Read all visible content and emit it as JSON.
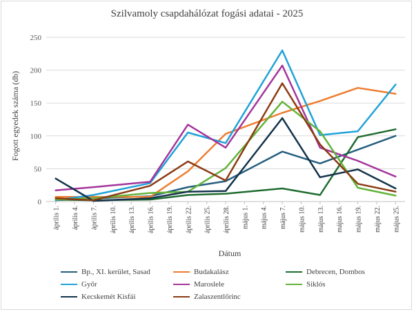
{
  "chart_data": {
    "type": "line",
    "title": "Szilvamoly csapdahálózat fogási adatai - 2025",
    "xlabel": "Dátum",
    "ylabel": "Fogott egyedek száma (db)",
    "ylim": [
      0,
      250
    ],
    "yticks": [
      0,
      50,
      100,
      150,
      200,
      250
    ],
    "grid": true,
    "legend_position": "bottom",
    "categories": [
      "április 1.",
      "április 4.",
      "április 7.",
      "április 10.",
      "április 13.",
      "április 16.",
      "április 19.",
      "április 22.",
      "április 25.",
      "április 28.",
      "május 1.",
      "május 4.",
      "május 7.",
      "május 10.",
      "május 13.",
      "május 16.",
      "május 19.",
      "május 22.",
      "május 25."
    ],
    "series": [
      {
        "name": "Bp., XI. kerület, Sasad",
        "color": "#255e7e",
        "points": [
          [
            0,
            2
          ],
          [
            2,
            5
          ],
          [
            5,
            8
          ],
          [
            7,
            22
          ],
          [
            9,
            31
          ],
          [
            12,
            76
          ],
          [
            14,
            58
          ],
          [
            16,
            79
          ],
          [
            18,
            100
          ]
        ]
      },
      {
        "name": "Budakalász",
        "color": "#ed7d31",
        "points": [
          [
            0,
            7
          ],
          [
            2,
            7
          ],
          [
            5,
            7
          ],
          [
            7,
            46
          ],
          [
            9,
            103
          ],
          [
            12,
            135
          ],
          [
            14,
            153
          ],
          [
            16,
            173
          ],
          [
            18,
            164
          ]
        ]
      },
      {
        "name": "Debrecen, Dombos",
        "color": "#1e6b2e",
        "points": [
          [
            0,
            3
          ],
          [
            2,
            2
          ],
          [
            5,
            3
          ],
          [
            7,
            10
          ],
          [
            9,
            12
          ],
          [
            12,
            20
          ],
          [
            14,
            10
          ],
          [
            16,
            98
          ],
          [
            18,
            110
          ]
        ]
      },
      {
        "name": "Győr",
        "color": "#1fa2d8",
        "points": [
          [
            0,
            2
          ],
          [
            2,
            10
          ],
          [
            5,
            28
          ],
          [
            7,
            105
          ],
          [
            9,
            89
          ],
          [
            12,
            230
          ],
          [
            14,
            101
          ],
          [
            16,
            107
          ],
          [
            18,
            178
          ]
        ]
      },
      {
        "name": "Maroslele",
        "color": "#a4349a",
        "points": [
          [
            0,
            17
          ],
          [
            2,
            22
          ],
          [
            5,
            30
          ],
          [
            7,
            117
          ],
          [
            9,
            82
          ],
          [
            12,
            207
          ],
          [
            14,
            82
          ],
          [
            16,
            62
          ],
          [
            18,
            38
          ]
        ]
      },
      {
        "name": "Siklós",
        "color": "#62b339",
        "points": [
          [
            0,
            3
          ],
          [
            2,
            5
          ],
          [
            5,
            13
          ],
          [
            7,
            15
          ],
          [
            9,
            51
          ],
          [
            12,
            152
          ],
          [
            14,
            107
          ],
          [
            16,
            21
          ],
          [
            18,
            9
          ]
        ]
      },
      {
        "name": "Kecskemét Kisfái",
        "color": "#13324a",
        "points": [
          [
            0,
            35
          ],
          [
            2,
            1
          ],
          [
            5,
            5
          ],
          [
            7,
            15
          ],
          [
            9,
            16
          ],
          [
            12,
            127
          ],
          [
            14,
            37
          ],
          [
            16,
            49
          ],
          [
            18,
            20
          ]
        ]
      },
      {
        "name": "Zalaszentlőrinc",
        "color": "#8b3a12",
        "points": [
          [
            0,
            5
          ],
          [
            2,
            2
          ],
          [
            5,
            24
          ],
          [
            7,
            61
          ],
          [
            9,
            32
          ],
          [
            12,
            180
          ],
          [
            14,
            87
          ],
          [
            16,
            27
          ],
          [
            18,
            15
          ]
        ]
      }
    ]
  }
}
